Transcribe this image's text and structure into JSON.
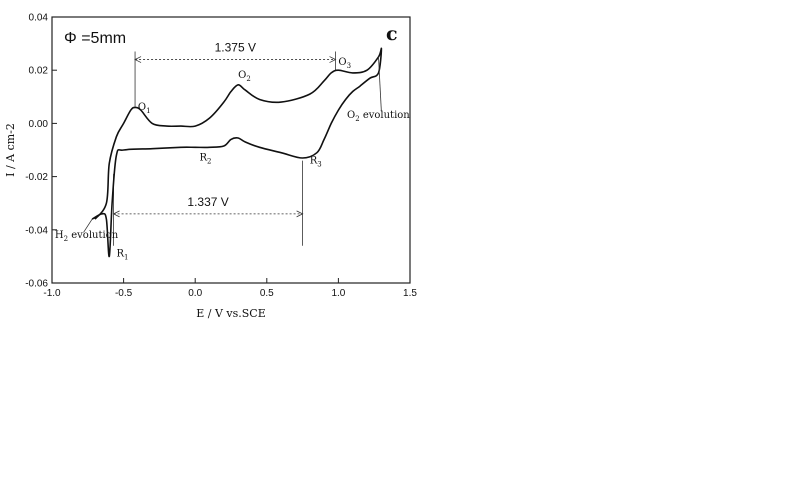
{
  "chart_data": {
    "type": "line",
    "xlabel": "E / V vs.SCE",
    "ylabel": "I / A cm-2",
    "xlim": [
      -1.0,
      1.5
    ],
    "ylim": [
      -0.06,
      0.04
    ],
    "xticks": [
      "-1.0",
      "-0.5",
      "0.0",
      "0.5",
      "1.0",
      "1.5"
    ],
    "yticks": [
      "0.04",
      "0.02",
      "0.00",
      "-0.02",
      "-0.04",
      "-0.06"
    ],
    "panel_label": "c",
    "phi_label": "Φ =5mm",
    "grid": false,
    "series": [
      {
        "x": [
          -0.7,
          -0.62,
          -0.6,
          -0.55,
          -0.5,
          -0.45,
          -0.42,
          -0.38,
          -0.3,
          -0.2,
          -0.1,
          0.0,
          0.1,
          0.2,
          0.25,
          0.3,
          0.35,
          0.45,
          0.6,
          0.8,
          0.9,
          0.95,
          1.0,
          1.1,
          1.2,
          1.28,
          1.3,
          1.28,
          1.22,
          1.15,
          1.1,
          1.05,
          1.0,
          0.95,
          0.9,
          0.85,
          0.75,
          0.6,
          0.45,
          0.35,
          0.3,
          0.25,
          0.2,
          0.1,
          0.0,
          -0.1,
          -0.3,
          -0.5,
          -0.55,
          -0.58,
          -0.6,
          -0.62,
          -0.65,
          -0.72
        ],
        "y": [
          -0.036,
          -0.03,
          -0.015,
          -0.005,
          0.0,
          0.005,
          0.006,
          0.005,
          0.0,
          -0.001,
          -0.001,
          -0.001,
          0.002,
          0.008,
          0.012,
          0.0145,
          0.0125,
          0.009,
          0.008,
          0.011,
          0.016,
          0.019,
          0.02,
          0.019,
          0.02,
          0.025,
          0.028,
          0.019,
          0.017,
          0.014,
          0.012,
          0.009,
          0.005,
          0.0,
          -0.006,
          -0.011,
          -0.013,
          -0.011,
          -0.009,
          -0.007,
          -0.0055,
          -0.006,
          -0.0085,
          -0.009,
          -0.009,
          -0.009,
          -0.0095,
          -0.01,
          -0.012,
          -0.03,
          -0.05,
          -0.036,
          -0.034,
          -0.036
        ]
      }
    ],
    "annotations": [
      {
        "main": "O",
        "sub": "1",
        "x": -0.4,
        "y": 0.005
      },
      {
        "main": "O",
        "sub": "2",
        "x": 0.3,
        "y": 0.017
      },
      {
        "main": "O",
        "sub": "3",
        "x": 1.0,
        "y": 0.022
      },
      {
        "main": "O",
        "sub": "2",
        "tail": " evolution",
        "x": 1.06,
        "y": 0.002
      },
      {
        "main": "R",
        "sub": "1",
        "x": -0.55,
        "y": -0.05
      },
      {
        "main": "R",
        "sub": "2",
        "x": 0.03,
        "y": -0.014
      },
      {
        "main": "R",
        "sub": "3",
        "x": 0.8,
        "y": -0.015
      },
      {
        "main": "H",
        "sub": "2",
        "tail": " evolution",
        "x": -0.98,
        "y": -0.043
      }
    ],
    "dimensions": [
      {
        "label": "1.375 V",
        "x1": -0.42,
        "x2": 0.98,
        "y": 0.024
      },
      {
        "label": "1.337 V",
        "x1": -0.57,
        "x2": 0.75,
        "y": -0.034
      }
    ]
  }
}
